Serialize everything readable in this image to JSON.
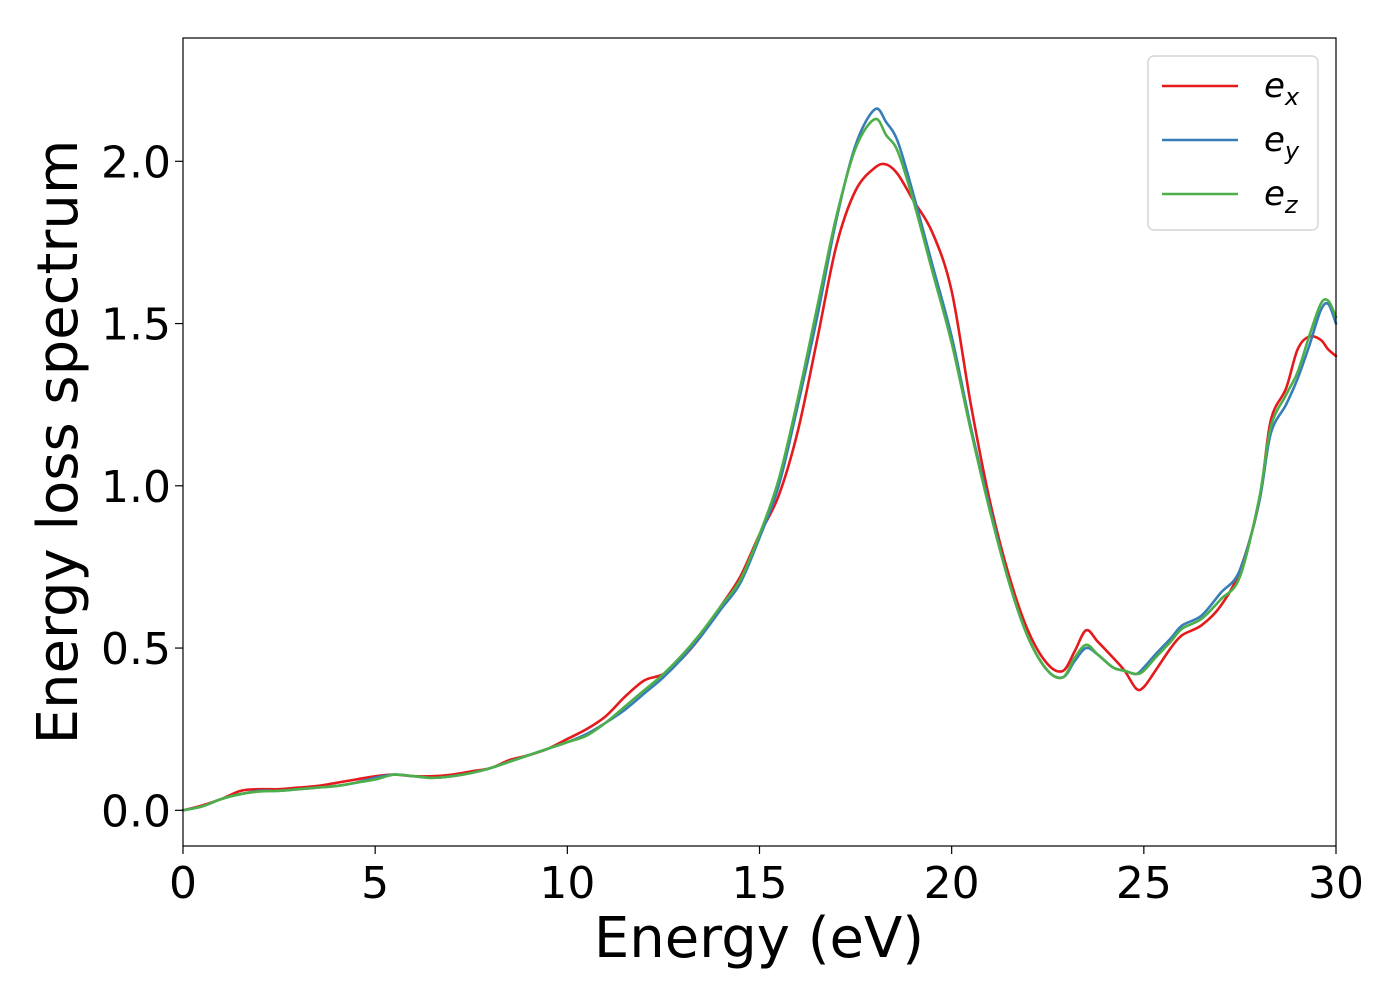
{
  "chart_data": {
    "type": "line",
    "xlabel": "Energy (eV)",
    "ylabel": "Energy loss spectrum",
    "xlim": [
      0,
      30
    ],
    "ylim": [
      -0.11,
      2.38
    ],
    "xticks": [
      0,
      5,
      10,
      15,
      20,
      25,
      30
    ],
    "xtick_labels": [
      "0",
      "5",
      "10",
      "15",
      "20",
      "25",
      "30"
    ],
    "yticks": [
      0.0,
      0.5,
      1.0,
      1.5,
      2.0
    ],
    "ytick_labels": [
      "0.0",
      "0.5",
      "1.0",
      "1.5",
      "2.0"
    ],
    "grid": false,
    "legend_position": "top-right",
    "series": [
      {
        "name": "e_x",
        "label_main": "e",
        "label_sub": "x",
        "color": "#e41a1c",
        "x": [
          0,
          0.5,
          1,
          1.5,
          2,
          2.5,
          3,
          3.5,
          4,
          4.5,
          5,
          5.5,
          6,
          6.5,
          7,
          7.5,
          8,
          8.5,
          9,
          9.5,
          10,
          10.5,
          11,
          11.5,
          12,
          12.5,
          13,
          13.5,
          14,
          14.5,
          15,
          15.5,
          16,
          16.5,
          17,
          17.5,
          18,
          18.3,
          18.6,
          19,
          19.5,
          20,
          20.5,
          21,
          21.5,
          22,
          22.5,
          22.9,
          23.2,
          23.5,
          23.8,
          24.2,
          24.5,
          24.8,
          25,
          25.3,
          25.7,
          26,
          26.5,
          27,
          27.5,
          28,
          28.3,
          28.7,
          29,
          29.3,
          29.6,
          29.8,
          30
        ],
        "y": [
          0.0,
          0.015,
          0.035,
          0.06,
          0.065,
          0.065,
          0.07,
          0.075,
          0.085,
          0.095,
          0.105,
          0.11,
          0.105,
          0.105,
          0.11,
          0.12,
          0.13,
          0.155,
          0.17,
          0.19,
          0.22,
          0.25,
          0.29,
          0.35,
          0.4,
          0.42,
          0.47,
          0.54,
          0.63,
          0.72,
          0.85,
          0.97,
          1.17,
          1.45,
          1.74,
          1.91,
          1.98,
          1.99,
          1.96,
          1.88,
          1.78,
          1.6,
          1.25,
          0.95,
          0.72,
          0.55,
          0.45,
          0.43,
          0.49,
          0.555,
          0.52,
          0.47,
          0.43,
          0.375,
          0.38,
          0.43,
          0.5,
          0.54,
          0.57,
          0.63,
          0.74,
          0.95,
          1.2,
          1.3,
          1.42,
          1.46,
          1.45,
          1.42,
          1.4
        ]
      },
      {
        "name": "e_y",
        "label_main": "e",
        "label_sub": "y",
        "color": "#377eb8",
        "x": [
          0,
          0.5,
          1,
          1.5,
          2,
          2.5,
          3,
          3.5,
          4,
          4.5,
          5,
          5.5,
          6,
          6.5,
          7,
          7.5,
          8,
          8.5,
          9,
          9.5,
          10,
          10.5,
          11,
          11.5,
          12,
          12.5,
          13,
          13.5,
          14,
          14.5,
          15,
          15.5,
          16,
          16.5,
          17,
          17.5,
          18,
          18.3,
          18.6,
          19,
          19.5,
          20,
          20.5,
          21,
          21.5,
          22,
          22.5,
          22.9,
          23.2,
          23.5,
          23.8,
          24.2,
          24.5,
          24.8,
          25,
          25.3,
          25.7,
          26,
          26.5,
          27,
          27.5,
          28,
          28.3,
          28.7,
          29,
          29.3,
          29.6,
          29.8,
          30
        ],
        "y": [
          0.0,
          0.012,
          0.035,
          0.05,
          0.06,
          0.06,
          0.065,
          0.07,
          0.075,
          0.085,
          0.1,
          0.11,
          0.105,
          0.1,
          0.105,
          0.115,
          0.13,
          0.15,
          0.17,
          0.19,
          0.21,
          0.235,
          0.27,
          0.31,
          0.36,
          0.41,
          0.47,
          0.54,
          0.62,
          0.7,
          0.84,
          1.0,
          1.25,
          1.52,
          1.82,
          2.05,
          2.16,
          2.12,
          2.06,
          1.9,
          1.68,
          1.46,
          1.18,
          0.93,
          0.7,
          0.53,
          0.43,
          0.41,
          0.46,
          0.5,
          0.48,
          0.44,
          0.43,
          0.42,
          0.44,
          0.48,
          0.53,
          0.57,
          0.6,
          0.67,
          0.74,
          0.95,
          1.16,
          1.25,
          1.33,
          1.43,
          1.54,
          1.56,
          1.5
        ]
      },
      {
        "name": "e_z",
        "label_main": "e",
        "label_sub": "z",
        "color": "#4daf4a",
        "x": [
          0,
          0.5,
          1,
          1.5,
          2,
          2.5,
          3,
          3.5,
          4,
          4.5,
          5,
          5.5,
          6,
          6.5,
          7,
          7.5,
          8,
          8.5,
          9,
          9.5,
          10,
          10.5,
          11,
          11.5,
          12,
          12.5,
          13,
          13.5,
          14,
          14.5,
          15,
          15.5,
          16,
          16.5,
          17,
          17.5,
          18,
          18.3,
          18.6,
          19,
          19.5,
          20,
          20.5,
          21,
          21.5,
          22,
          22.5,
          22.9,
          23.2,
          23.5,
          23.8,
          24.2,
          24.5,
          24.8,
          25,
          25.3,
          25.7,
          26,
          26.5,
          27,
          27.5,
          28,
          28.3,
          28.7,
          29,
          29.3,
          29.6,
          29.8,
          30
        ],
        "y": [
          0.0,
          0.012,
          0.035,
          0.05,
          0.058,
          0.06,
          0.065,
          0.07,
          0.075,
          0.085,
          0.095,
          0.11,
          0.105,
          0.1,
          0.105,
          0.115,
          0.13,
          0.15,
          0.17,
          0.19,
          0.21,
          0.23,
          0.27,
          0.32,
          0.37,
          0.42,
          0.48,
          0.55,
          0.63,
          0.71,
          0.85,
          1.02,
          1.27,
          1.55,
          1.83,
          2.04,
          2.13,
          2.08,
          2.03,
          1.88,
          1.66,
          1.44,
          1.17,
          0.92,
          0.7,
          0.53,
          0.43,
          0.41,
          0.47,
          0.51,
          0.48,
          0.44,
          0.43,
          0.42,
          0.43,
          0.47,
          0.52,
          0.56,
          0.59,
          0.65,
          0.72,
          0.96,
          1.18,
          1.28,
          1.35,
          1.46,
          1.56,
          1.57,
          1.52
        ]
      }
    ]
  }
}
